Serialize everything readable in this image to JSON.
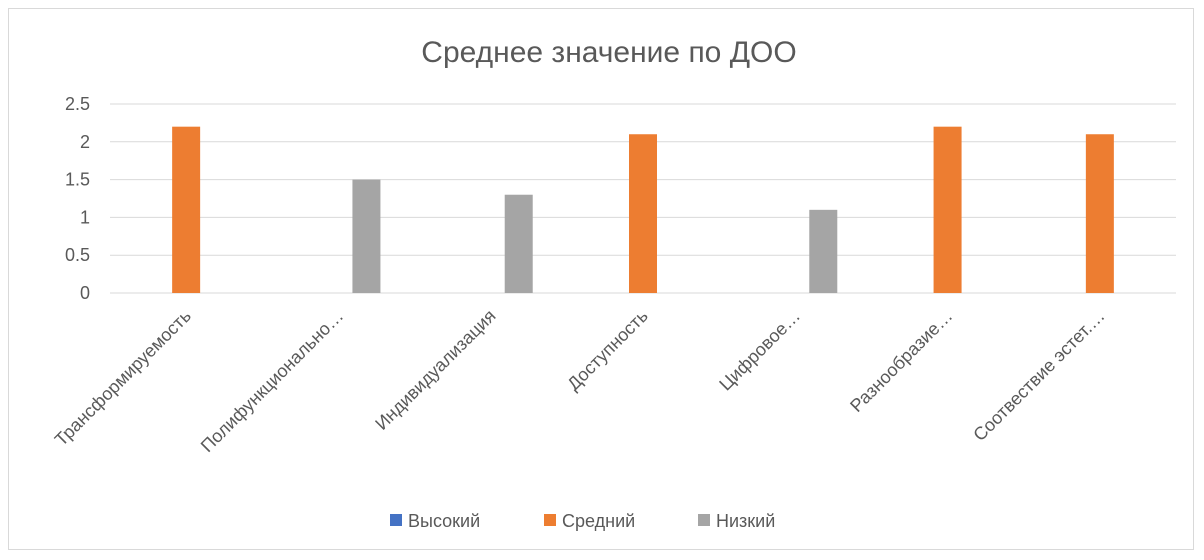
{
  "chart_data": {
    "type": "bar",
    "title": "Среднее значение по ДОО",
    "categories": [
      "Трансформируемость",
      "Полифункционально…",
      "Индивидуализация",
      "Доступность",
      "Цифровое…",
      "Разнообразие…",
      "Соотвествие эстет.…"
    ],
    "series": [
      {
        "name": "Высокий",
        "color": "#4472c4",
        "values": [
          null,
          null,
          null,
          null,
          null,
          null,
          null
        ]
      },
      {
        "name": "Средний",
        "color": "#ed7d31",
        "values": [
          2.2,
          null,
          null,
          2.1,
          null,
          2.2,
          2.1
        ]
      },
      {
        "name": "Низкий",
        "color": "#a5a5a5",
        "values": [
          null,
          1.5,
          1.3,
          null,
          1.1,
          null,
          null
        ]
      }
    ],
    "y_ticks": [
      "0",
      "0.5",
      "1",
      "1.5",
      "2",
      "2.5"
    ],
    "ylim": [
      0,
      2.5
    ],
    "grid": true,
    "legend_position": "bottom"
  }
}
